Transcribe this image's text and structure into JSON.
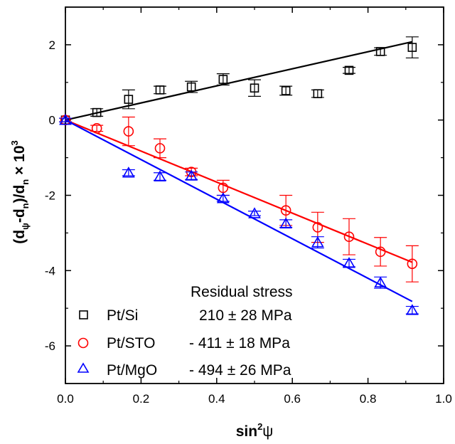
{
  "chart_data": {
    "type": "scatter",
    "xlabel": "sin",
    "xlabel_sup": "2",
    "xlabel_sym": "ψ",
    "ylabel_parts": [
      "(d",
      "ψ",
      "-d",
      "n",
      ")/d",
      "n",
      " × 10",
      "3"
    ],
    "xlim": [
      0.0,
      1.0
    ],
    "ylim": [
      -7,
      3
    ],
    "x_ticks": [
      "0.0",
      "0.2",
      "0.4",
      "0.6",
      "0.8",
      "1.0"
    ],
    "y_ticks": [
      "-6",
      "-4",
      "-2",
      "0",
      "2"
    ],
    "legend_title": "Residual stress",
    "series": [
      {
        "name": "Pt/Si",
        "stress": "210 ± 28 MPa",
        "color": "#000000",
        "marker": "square",
        "x": [
          0.0,
          0.083,
          0.167,
          0.25,
          0.333,
          0.417,
          0.5,
          0.583,
          0.667,
          0.75,
          0.833,
          0.917
        ],
        "y": [
          0.0,
          0.2,
          0.55,
          0.8,
          0.88,
          1.08,
          0.85,
          0.78,
          0.7,
          1.32,
          1.82,
          1.93
        ],
        "err": [
          0.05,
          0.1,
          0.25,
          0.1,
          0.15,
          0.15,
          0.22,
          0.12,
          0.1,
          0.08,
          0.1,
          0.28
        ],
        "fit": [
          [
            0.0,
            0.0
          ],
          [
            0.917,
            2.08
          ]
        ]
      },
      {
        "name": "Pt/STO",
        "stress": "- 411 ± 18 MPa",
        "color": "#ff0000",
        "marker": "circle",
        "x": [
          0.0,
          0.083,
          0.167,
          0.25,
          0.333,
          0.417,
          0.583,
          0.667,
          0.75,
          0.833,
          0.917
        ],
        "y": [
          0.0,
          -0.22,
          -0.3,
          -0.75,
          -1.38,
          -1.8,
          -2.4,
          -2.85,
          -3.1,
          -3.5,
          -3.82
        ],
        "err": [
          0.05,
          0.08,
          0.38,
          0.25,
          0.1,
          0.2,
          0.4,
          0.4,
          0.48,
          0.38,
          0.48
        ],
        "fit": [
          [
            0.0,
            0.0
          ],
          [
            0.917,
            -3.78
          ]
        ]
      },
      {
        "name": "Pt/MgO",
        "stress": "- 494 ± 26 MPa",
        "color": "#0000ff",
        "marker": "triangle",
        "x": [
          0.0,
          0.167,
          0.25,
          0.333,
          0.417,
          0.5,
          0.583,
          0.667,
          0.75,
          0.833,
          0.917
        ],
        "y": [
          0.0,
          -1.4,
          -1.5,
          -1.48,
          -2.08,
          -2.48,
          -2.75,
          -3.25,
          -3.8,
          -4.32,
          -5.05
        ],
        "err": [
          0.05,
          0.08,
          0.1,
          0.1,
          0.08,
          0.06,
          0.1,
          0.15,
          0.1,
          0.15,
          0.1
        ],
        "fit": [
          [
            0.0,
            0.0
          ],
          [
            0.917,
            -4.82
          ]
        ]
      }
    ]
  }
}
